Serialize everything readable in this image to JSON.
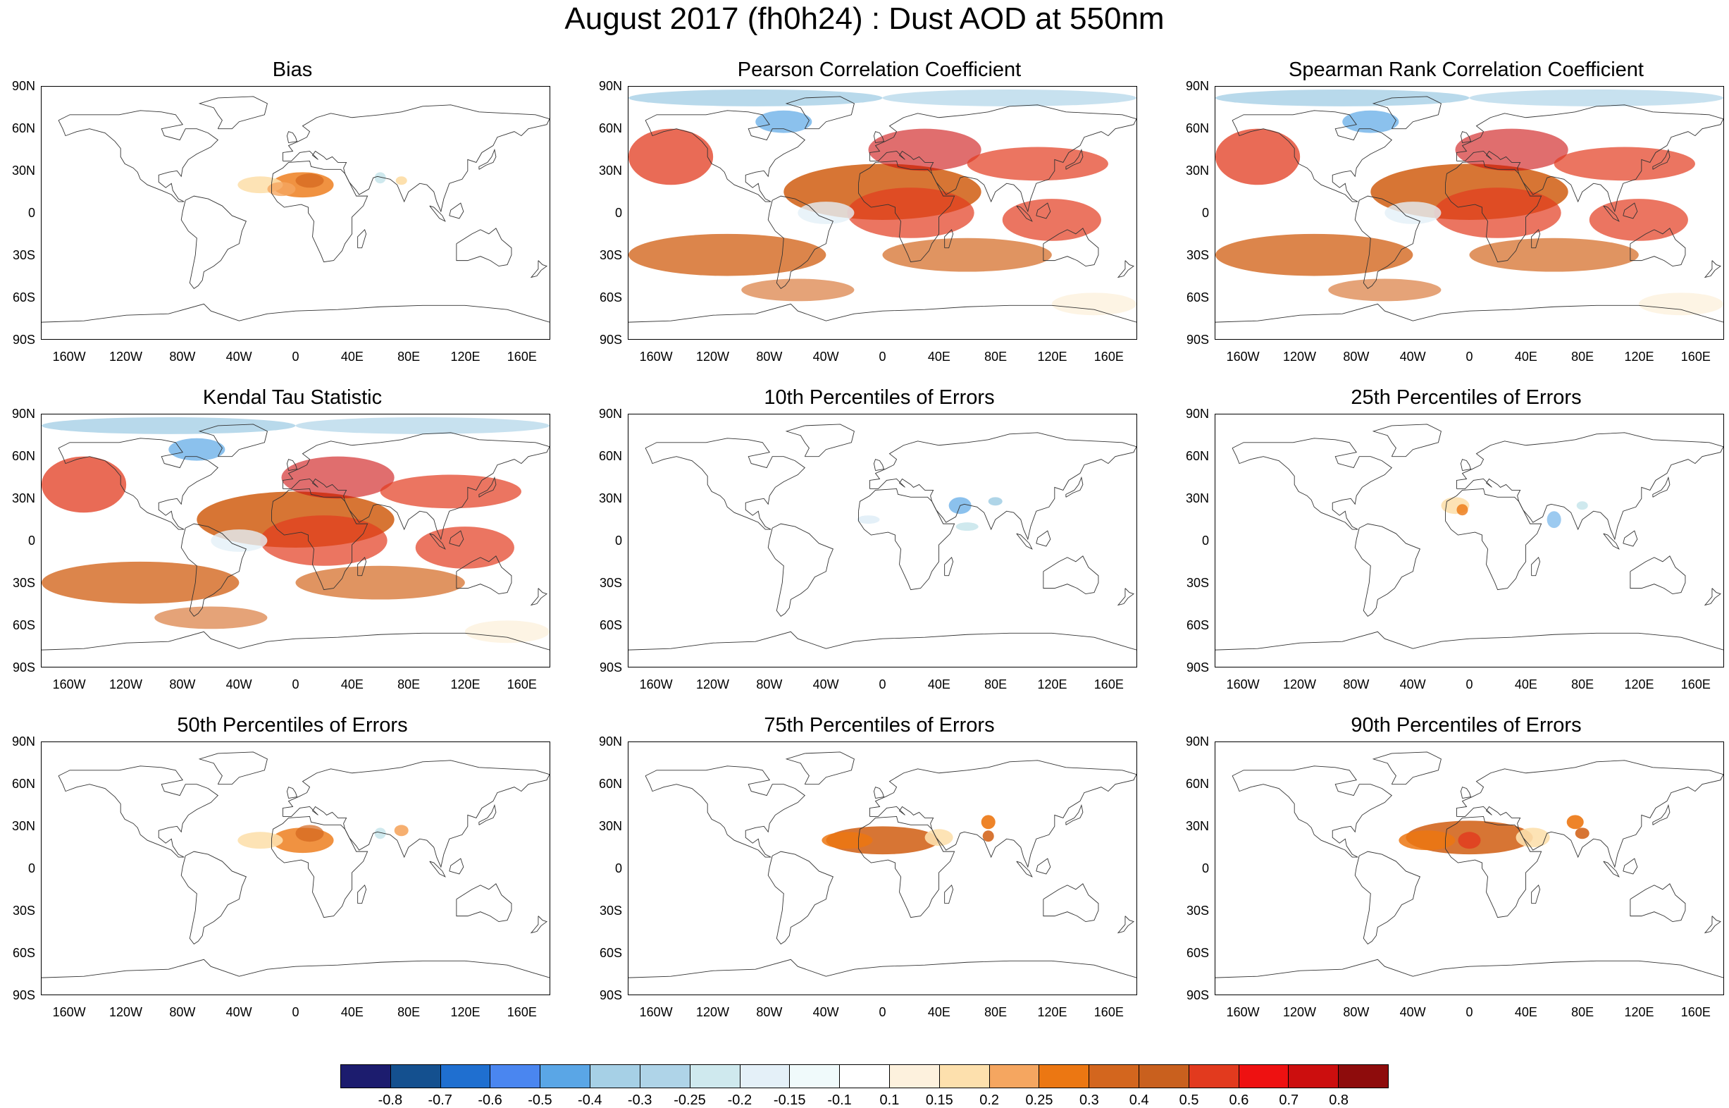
{
  "figure_title": "August 2017 (fh0h24) : Dust AOD at 550nm",
  "lat_labels": [
    "90N",
    "60N",
    "30N",
    "0",
    "30S",
    "60S",
    "90S"
  ],
  "lon_labels": [
    "160W",
    "120W",
    "80W",
    "40W",
    "0",
    "40E",
    "80E",
    "120E",
    "160E"
  ],
  "panels": [
    {
      "id": "bias",
      "title": "Bias",
      "pattern": "bias"
    },
    {
      "id": "pearson",
      "title": "Pearson Correlation Coefficient",
      "pattern": "corr"
    },
    {
      "id": "spearman",
      "title": "Spearman Rank Correlation Coefficient",
      "pattern": "corr"
    },
    {
      "id": "kendall",
      "title": "Kendal Tau Statistic",
      "pattern": "corr"
    },
    {
      "id": "p10",
      "title": "10th Percentiles of Errors",
      "pattern": "p10"
    },
    {
      "id": "p25",
      "title": "25th Percentiles of Errors",
      "pattern": "p25"
    },
    {
      "id": "p50",
      "title": "50th Percentiles of Errors",
      "pattern": "p50"
    },
    {
      "id": "p75",
      "title": "75th Percentiles of Errors",
      "pattern": "p75"
    },
    {
      "id": "p90",
      "title": "90th Percentiles of Errors",
      "pattern": "p90"
    }
  ],
  "colorbar": {
    "colors": [
      "#1c1c6e",
      "#14508f",
      "#1f6fd0",
      "#4a86f0",
      "#5aa6e6",
      "#a6d0e6",
      "#afd4e8",
      "#cfe9ee",
      "#e4f0f8",
      "#f0fafb",
      "#ffffff",
      "#fdf1dd",
      "#fde0ad",
      "#f5a660",
      "#ec7712",
      "#d3661e",
      "#c9601e",
      "#e23a1e",
      "#ee1111",
      "#cc0e0e",
      "#8e0c0c"
    ],
    "labels": [
      "-0.8",
      "-0.7",
      "-0.6",
      "-0.5",
      "-0.4",
      "-0.3",
      "-0.25",
      "-0.2",
      "-0.15",
      "-0.1",
      "0.1",
      "0.15",
      "0.2",
      "0.25",
      "0.3",
      "0.4",
      "0.5",
      "0.6",
      "0.7",
      "0.8"
    ]
  }
}
